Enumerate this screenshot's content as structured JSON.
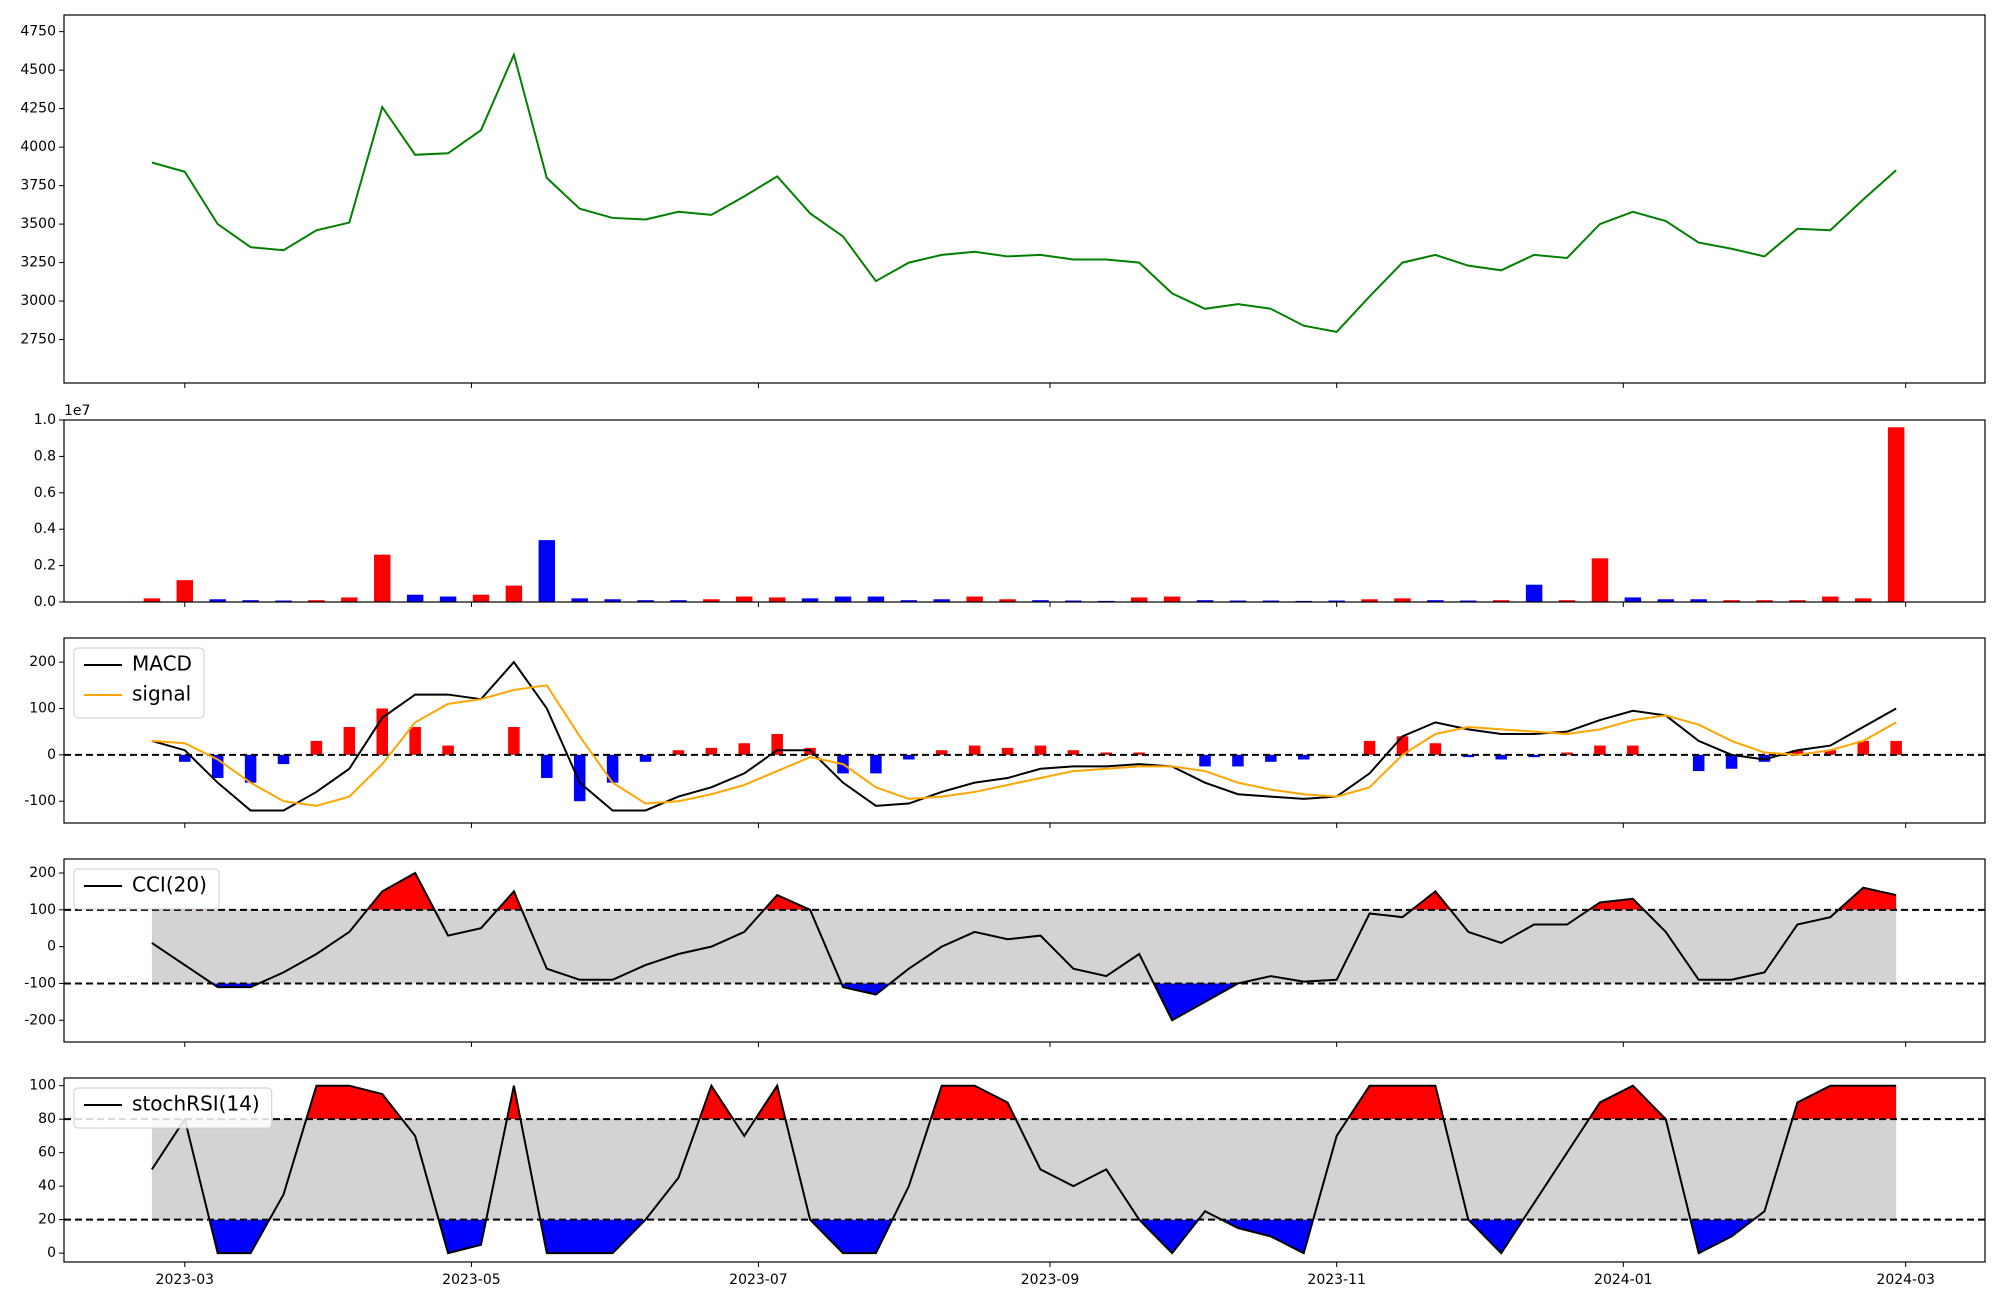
{
  "chart_data": [
    {
      "type": "line",
      "xlim": [
        -2.67,
        55.7
      ],
      "ylim": [
        2468,
        4858
      ],
      "yticks": [
        2750,
        3000,
        3250,
        3500,
        3750,
        4000,
        4250,
        4500,
        4750
      ],
      "series": [
        {
          "color": "#008000",
          "values": [
            3900,
            3840,
            3500,
            3350,
            3330,
            3460,
            3510,
            4260,
            3950,
            3960,
            4110,
            4600,
            3800,
            3600,
            3540,
            3530,
            3580,
            3560,
            3680,
            3810,
            3570,
            3420,
            3130,
            3250,
            3300,
            3320,
            3290,
            3300,
            3270,
            3270,
            3250,
            3050,
            2950,
            2980,
            2950,
            2840,
            2800,
            3030,
            3250,
            3300,
            3230,
            3200,
            3300,
            3280,
            3500,
            3580,
            3520,
            3380,
            3340,
            3290,
            3470,
            3460,
            3660,
            3850
          ]
        }
      ]
    },
    {
      "type": "bar",
      "xlim": [
        -2.67,
        55.7
      ],
      "ylim": [
        0,
        10000000
      ],
      "offset_text": "1e7",
      "yticks": [
        {
          "value": 0,
          "label": "0.0"
        },
        {
          "value": 2000000,
          "label": "0.2"
        },
        {
          "value": 4000000,
          "label": "0.4"
        },
        {
          "value": 6000000,
          "label": "0.6"
        },
        {
          "value": 8000000,
          "label": "0.8"
        },
        {
          "value": 10000000,
          "label": "1.0"
        }
      ],
      "values": [
        200000,
        1200000,
        150000,
        100000,
        80000,
        100000,
        250000,
        2600000,
        400000,
        300000,
        400000,
        900000,
        3400000,
        200000,
        150000,
        100000,
        100000,
        150000,
        300000,
        250000,
        200000,
        300000,
        300000,
        100000,
        150000,
        300000,
        150000,
        100000,
        80000,
        60000,
        250000,
        300000,
        100000,
        80000,
        80000,
        60000,
        80000,
        150000,
        200000,
        100000,
        80000,
        100000,
        950000,
        100000,
        2400000,
        250000,
        150000,
        150000,
        100000,
        100000,
        100000,
        300000,
        200000,
        9600000
      ],
      "colors": [
        "red",
        "red",
        "blue",
        "blue",
        "blue",
        "red",
        "red",
        "red",
        "blue",
        "blue",
        "red",
        "red",
        "blue",
        "blue",
        "blue",
        "blue",
        "blue",
        "red",
        "red",
        "red",
        "blue",
        "blue",
        "blue",
        "blue",
        "blue",
        "red",
        "red",
        "blue",
        "blue",
        "blue",
        "red",
        "red",
        "blue",
        "blue",
        "blue",
        "blue",
        "blue",
        "red",
        "red",
        "blue",
        "blue",
        "red",
        "blue",
        "red",
        "red",
        "blue",
        "blue",
        "blue",
        "red",
        "red",
        "red",
        "red",
        "red",
        "red"
      ]
    },
    {
      "type": "line",
      "xlim": [
        -2.67,
        55.7
      ],
      "ylim": [
        -147,
        252
      ],
      "yticks": [
        -100,
        0,
        100,
        200
      ],
      "hlines": [
        0
      ],
      "legend": "upper left",
      "series": [
        {
          "name": "MACD",
          "color": "#000000",
          "values": [
            30,
            10,
            -60,
            -120,
            -120,
            -80,
            -30,
            80,
            130,
            130,
            120,
            200,
            100,
            -60,
            -120,
            -120,
            -90,
            -70,
            -40,
            10,
            10,
            -60,
            -110,
            -105,
            -80,
            -60,
            -50,
            -30,
            -25,
            -25,
            -20,
            -25,
            -60,
            -85,
            -90,
            -95,
            -90,
            -40,
            40,
            70,
            55,
            45,
            45,
            50,
            75,
            95,
            85,
            30,
            0,
            -10,
            10,
            20,
            60,
            100
          ]
        },
        {
          "name": "signal",
          "color": "#ffa500",
          "values": [
            30,
            25,
            -10,
            -60,
            -100,
            -110,
            -90,
            -20,
            70,
            110,
            120,
            140,
            150,
            40,
            -60,
            -105,
            -100,
            -85,
            -65,
            -35,
            -5,
            -20,
            -70,
            -95,
            -90,
            -80,
            -65,
            -50,
            -35,
            -30,
            -25,
            -25,
            -35,
            -60,
            -75,
            -85,
            -90,
            -70,
            0,
            45,
            60,
            55,
            50,
            45,
            55,
            75,
            85,
            65,
            30,
            5,
            0,
            10,
            30,
            70
          ]
        }
      ],
      "histogram": {
        "colors": [
          "red",
          "blue"
        ],
        "values": [
          0,
          -15,
          -50,
          -60,
          -20,
          30,
          60,
          100,
          60,
          20,
          0,
          60,
          -50,
          -100,
          -60,
          -15,
          10,
          15,
          25,
          45,
          15,
          -40,
          -40,
          -10,
          10,
          20,
          15,
          20,
          10,
          5,
          5,
          0,
          -25,
          -25,
          -15,
          -10,
          0,
          30,
          40,
          25,
          -5,
          -10,
          -5,
          5,
          20,
          20,
          0,
          -35,
          -30,
          -15,
          10,
          10,
          30,
          30
        ]
      }
    },
    {
      "type": "line",
      "xlim": [
        -2.67,
        55.7
      ],
      "ylim": [
        -259,
        238
      ],
      "yticks": [
        -200,
        -100,
        0,
        100,
        200
      ],
      "hlines": [
        100,
        -100
      ],
      "legend": "upper left",
      "band_color": "lightgray",
      "above_color": "red",
      "below_color": "blue",
      "series": [
        {
          "name": "CCI(20)",
          "color": "#000000",
          "values": [
            10,
            -50,
            -110,
            -110,
            -70,
            -20,
            40,
            150,
            200,
            30,
            50,
            150,
            -60,
            -90,
            -90,
            -50,
            -20,
            0,
            40,
            140,
            100,
            -110,
            -130,
            -60,
            0,
            40,
            20,
            30,
            -60,
            -80,
            -20,
            -200,
            -150,
            -100,
            -80,
            -95,
            -90,
            90,
            80,
            150,
            40,
            10,
            60,
            60,
            120,
            130,
            40,
            -90,
            -90,
            -70,
            60,
            80,
            160,
            140
          ]
        }
      ]
    },
    {
      "type": "line",
      "xlim": [
        -2.67,
        55.7
      ],
      "ylim": [
        -5.3,
        104.6
      ],
      "yticks": [
        0,
        20,
        40,
        60,
        80,
        100
      ],
      "hlines": [
        80,
        20
      ],
      "legend": "upper left",
      "band_color": "lightgray",
      "above_color": "red",
      "below_color": "blue",
      "xticks": [
        {
          "value": 1,
          "label": "2023-03"
        },
        {
          "value": 9.71,
          "label": "2023-05"
        },
        {
          "value": 18.43,
          "label": "2023-07"
        },
        {
          "value": 27.29,
          "label": "2023-09"
        },
        {
          "value": 36,
          "label": "2023-11"
        },
        {
          "value": 44.71,
          "label": "2024-01"
        },
        {
          "value": 53.29,
          "label": "2024-03"
        }
      ],
      "series": [
        {
          "name": "stochRSI(14)",
          "color": "#000000",
          "values": [
            50,
            80,
            0,
            0,
            35,
            100,
            100,
            95,
            70,
            0,
            5,
            100,
            0,
            0,
            0,
            20,
            45,
            100,
            70,
            100,
            20,
            0,
            0,
            40,
            100,
            100,
            90,
            50,
            40,
            50,
            20,
            0,
            25,
            15,
            10,
            0,
            70,
            100,
            100,
            100,
            20,
            0,
            30,
            60,
            90,
            100,
            80,
            0,
            10,
            25,
            90,
            100,
            100,
            100
          ]
        }
      ]
    }
  ]
}
